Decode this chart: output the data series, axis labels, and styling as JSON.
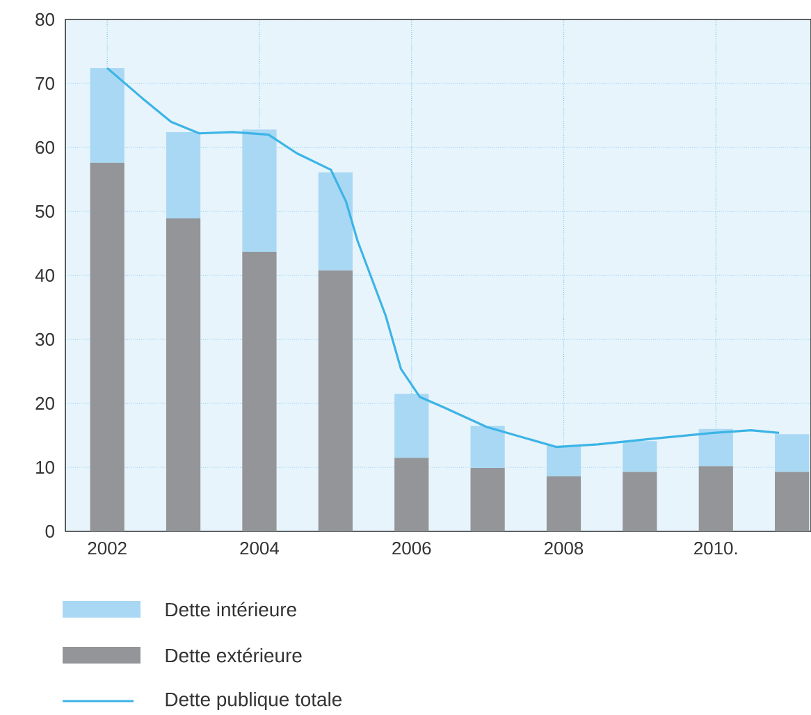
{
  "chart_data": {
    "type": "bar",
    "stacked": true,
    "x": [
      2002,
      2003,
      2004,
      2005,
      2006,
      2007,
      2008,
      2009,
      2010,
      2011
    ],
    "xlim": [
      2001.45,
      2011.25
    ],
    "xticks": [
      2002,
      2004,
      2006,
      2008,
      {
        "value": 2010,
        "label": "2010."
      }
    ],
    "ylim": [
      0,
      80
    ],
    "yticks": [
      0,
      10,
      20,
      30,
      40,
      50,
      60,
      70,
      80
    ],
    "grid": true,
    "legend": "bottom",
    "series": [
      {
        "name": "Dette extérieure",
        "color": "#939598",
        "values": [
          57.6,
          48.9,
          43.7,
          40.8,
          11.5,
          9.9,
          8.6,
          9.3,
          10.2,
          9.3
        ]
      },
      {
        "name": "Dette intérieure",
        "color": "#a9d8f4",
        "values": [
          14.8,
          13.5,
          19.1,
          15.3,
          10.0,
          6.6,
          4.8,
          4.8,
          5.8,
          5.9
        ]
      },
      {
        "name": "Dette publique totale",
        "type": "line",
        "color": "#3cb4e6",
        "x": [
          2002,
          2002.46,
          2002.84,
          2003.21,
          2003.65,
          2004.12,
          2004.49,
          2004.94,
          2005.14,
          2005.29,
          2005.66,
          2005.86,
          2006.11,
          2006.44,
          2006.99,
          2007.9,
          2008.45,
          2009.18,
          2009.97,
          2010.46,
          2010.83
        ],
        "values": [
          72.4,
          67.7,
          64.0,
          62.2,
          62.4,
          62.0,
          59.1,
          56.5,
          51.5,
          45.4,
          33.7,
          25.4,
          21.0,
          19.3,
          16.3,
          13.2,
          13.6,
          14.5,
          15.4,
          15.8,
          15.4
        ]
      }
    ]
  }
}
